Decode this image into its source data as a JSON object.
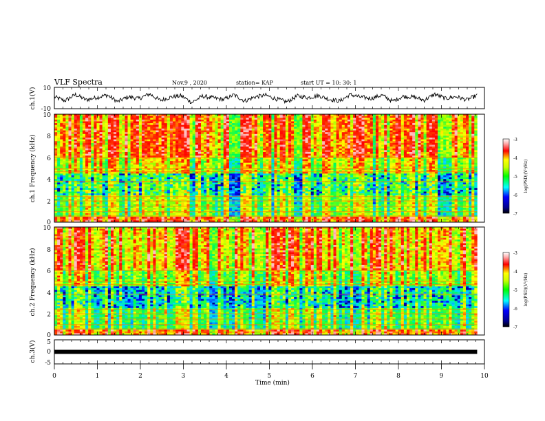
{
  "header": {
    "title": "VLF Spectra",
    "date": "Nov.9 , 2020",
    "station": "station= KAP",
    "start": "start UT = 10: 30: 1"
  },
  "chart_data": [
    {
      "type": "line",
      "panel": "ch1-waveform",
      "ylabel": "ch.1(V)",
      "ylim": [
        -10,
        10
      ],
      "y_ticks": [
        "10",
        "-10"
      ],
      "xlim": [
        0,
        10
      ],
      "series_description_values": [
        1.0,
        -2.5,
        3.2,
        -1.8,
        0.5,
        2.8,
        -3.4,
        1.2,
        -0.6,
        3.9,
        -2.2,
        0.8,
        2.1,
        -4.1,
        1.7,
        0.2,
        -1.5,
        3.0,
        -2.8,
        1.1,
        2.6,
        -0.9,
        -3.6,
        1.9,
        0.4,
        2.3,
        -1.1,
        -2.9,
        3.3,
        0.7,
        -0.3,
        2.7,
        -3.1,
        1.5,
        0.9,
        -2.0,
        3.6,
        -0.5,
        1.3,
        -1.7,
        2.4
      ]
    },
    {
      "type": "heatmap",
      "panel": "ch1-spectrogram",
      "ylabel": "ch.1 Frequency (kHz)",
      "ylim": [
        0,
        10
      ],
      "y_ticks": [
        "0",
        "2",
        "4",
        "6",
        "8",
        "10"
      ],
      "xlim": [
        0,
        10
      ],
      "colorbar": {
        "label": "log(PSD)(V²/Hz)",
        "range": [
          -7,
          -3
        ],
        "ticks": [
          "-3",
          "-4",
          "-5",
          "-6",
          "-7"
        ]
      }
    },
    {
      "type": "heatmap",
      "panel": "ch2-spectrogram",
      "ylabel": "ch.2 Frequency (kHz)",
      "ylim": [
        0,
        10
      ],
      "y_ticks": [
        "0",
        "2",
        "4",
        "6",
        "8",
        "10"
      ],
      "xlim": [
        0,
        10
      ],
      "colorbar": {
        "label": "log(PSD)(V²/Hz)",
        "range": [
          -7,
          -3
        ],
        "ticks": [
          "-3",
          "-4",
          "-5",
          "-6",
          "-7"
        ]
      }
    },
    {
      "type": "line",
      "panel": "ch3-waveform",
      "ylabel": "ch.3(V)",
      "ylim": [
        -5,
        5
      ],
      "y_ticks": [
        "5",
        "0",
        "-5"
      ],
      "xlim": [
        0,
        10
      ],
      "constant_level": 0
    }
  ],
  "x_axis": {
    "label": "Time (min)",
    "ticks": [
      "0",
      "1",
      "2",
      "3",
      "4",
      "5",
      "6",
      "7",
      "8",
      "9",
      "10"
    ]
  },
  "colors": {
    "frame": "#000000",
    "trace": "#000000"
  }
}
